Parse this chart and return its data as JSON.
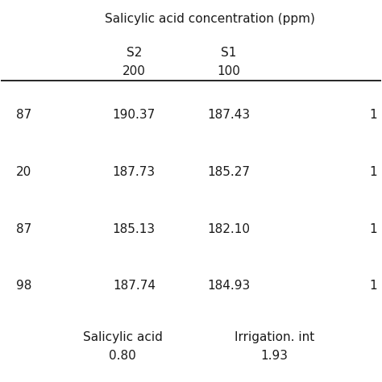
{
  "title": "Salicylic acid concentration (ppm)",
  "col_headers": [
    [
      "S2",
      "S1"
    ],
    [
      "200",
      "100"
    ]
  ],
  "row_left_labels": [
    "87",
    "20",
    "87",
    "98"
  ],
  "row_right_values": [
    "1",
    "1",
    "1",
    "1"
  ],
  "cell_data": [
    [
      "190.37",
      "187.43"
    ],
    [
      "187.73",
      "185.27"
    ],
    [
      "185.13",
      "182.10"
    ],
    [
      "187.74",
      "184.93"
    ]
  ],
  "footer_labels": [
    "Salicylic acid",
    "Irrigation. int"
  ],
  "footer_values": [
    "0.80",
    "1.93"
  ],
  "bg_color": "#ffffff",
  "text_color": "#1a1a1a",
  "font_size": 11,
  "header_font_size": 11
}
